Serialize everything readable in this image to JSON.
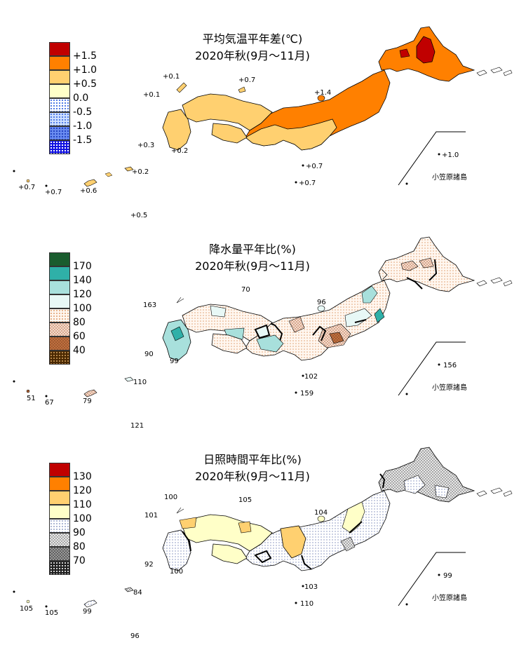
{
  "panels": [
    {
      "title_line1": "平均気温平年差(℃)",
      "title_line2": "2020年秋(9月～11月)",
      "legend": [
        {
          "label": "+1.5",
          "color": "#c00000"
        },
        {
          "label": "+1.0",
          "color": "#ff8000"
        },
        {
          "label": "+0.5",
          "color": "#ffd070"
        },
        {
          "label": "0.0",
          "color": "#ffffc8"
        },
        {
          "label": "-0.5",
          "color": "#e8f4ff"
        },
        {
          "label": "-1.0",
          "color": "#b8d4ff"
        },
        {
          "label": "-1.5",
          "color": "#1010e0"
        }
      ],
      "values": [
        "+0.1",
        "+0.7",
        "+0.1",
        "+1.4",
        "+0.3",
        "+0.2",
        "+0.2",
        "+0.7",
        "+0.7",
        "+0.7",
        "+0.7",
        "+0.6",
        "+0.5",
        "+1.0"
      ],
      "ogasawara_label": "小笠原諸島"
    },
    {
      "title_line1": "降水量平年比(%)",
      "title_line2": "2020年秋(9月～11月)",
      "legend": [
        {
          "label": "170",
          "color": "#1a5c2e"
        },
        {
          "label": "140",
          "color": "#2fb0a8"
        },
        {
          "label": "120",
          "color": "#a8e0dc"
        },
        {
          "label": "100",
          "color": "#e8f8f6"
        },
        {
          "label": "80",
          "color": "#f6e2d8"
        },
        {
          "label": "60",
          "color": "#c08050"
        },
        {
          "label": "40",
          "color": "#5a3200"
        }
      ],
      "values": [
        "70",
        "163",
        "96",
        "90",
        "99",
        "110",
        "51",
        "67",
        "79",
        "102",
        "159",
        "121",
        "156"
      ],
      "ogasawara_label": "小笠原諸島"
    },
    {
      "title_line1": "日照時間平年比(%)",
      "title_line2": "2020年秋(9月～11月)",
      "legend": [
        {
          "label": "130",
          "color": "#c00000"
        },
        {
          "label": "120",
          "color": "#ff8000"
        },
        {
          "label": "110",
          "color": "#ffd070"
        },
        {
          "label": "100",
          "color": "#ffffc8"
        },
        {
          "label": "90",
          "color": "#eef0f8"
        },
        {
          "label": "80",
          "color": "#c0c0c0"
        },
        {
          "label": "70",
          "color": "#303030"
        }
      ],
      "values": [
        "100",
        "105",
        "101",
        "104",
        "92",
        "100",
        "84",
        "105",
        "105",
        "99",
        "103",
        "110",
        "96",
        "99"
      ],
      "ogasawara_label": "小笠原諸島"
    }
  ]
}
